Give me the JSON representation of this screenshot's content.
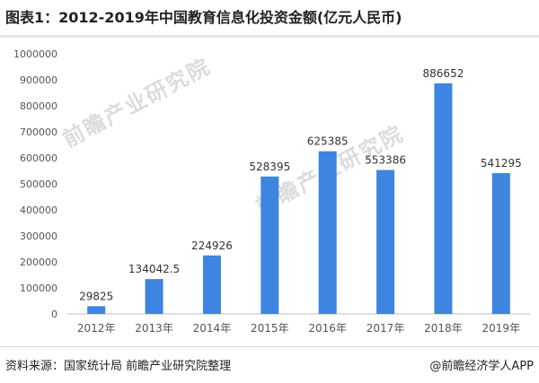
{
  "title": "图表1：2012-2019年中国教育信息化投资金额(亿元人民币)",
  "watermark": "前瞻产业研究院",
  "source": "资料来源：国家统计局 前瞻产业研究院整理",
  "credit": "@前瞻经济学人APP",
  "colors": {
    "bar": "#3d85e0",
    "axis": "#bfbfbf",
    "text": "#555555"
  },
  "chart_data": {
    "type": "bar",
    "categories": [
      "2012年",
      "2013年",
      "2014年",
      "2015年",
      "2016年",
      "2017年",
      "2018年",
      "2019年"
    ],
    "values": [
      29825,
      134042.5,
      224926,
      528395,
      625385,
      553386,
      886652,
      541295
    ],
    "data_labels": [
      "29825",
      "134042.5",
      "224926",
      "528395",
      "625385",
      "553386",
      "886652",
      "541295"
    ],
    "y_ticks": [
      0,
      100000,
      200000,
      300000,
      400000,
      500000,
      600000,
      700000,
      800000,
      900000,
      1000000
    ],
    "ylim": [
      0,
      1000000
    ],
    "grid": false,
    "legend": "none"
  }
}
